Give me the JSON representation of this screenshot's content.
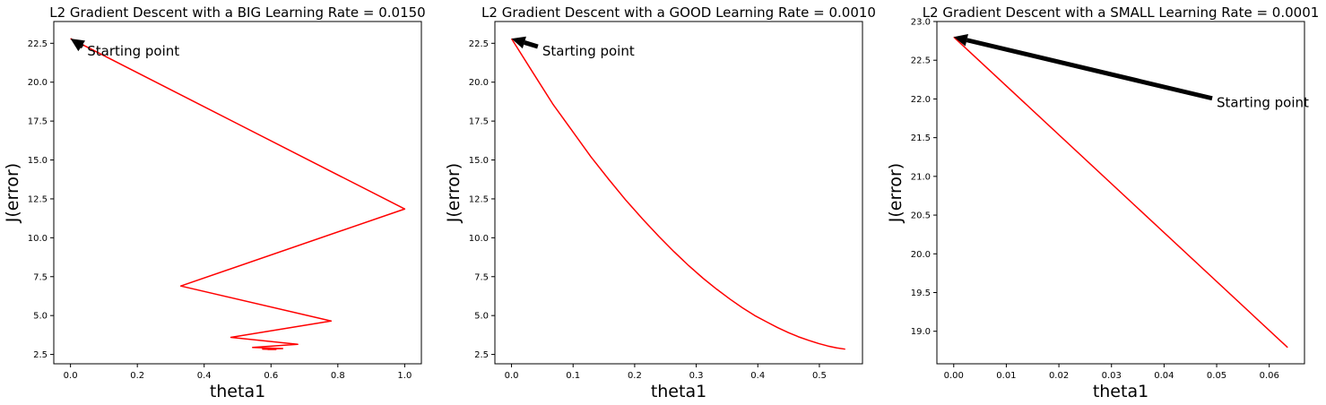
{
  "chart_data": [
    {
      "type": "line",
      "title": "L2 Gradient Descent with a BIG Learning Rate = 0.0150",
      "xlabel": "theta1",
      "ylabel": "J(error)",
      "xlim": [
        -0.05,
        1.05
      ],
      "ylim": [
        1.9,
        23.9
      ],
      "xticks": [
        0.0,
        0.2,
        0.4,
        0.6,
        0.8,
        1.0
      ],
      "xtick_labels": [
        "0.0",
        "0.2",
        "0.4",
        "0.6",
        "0.8",
        "1.0"
      ],
      "yticks": [
        2.5,
        5.0,
        7.5,
        10.0,
        12.5,
        15.0,
        17.5,
        20.0,
        22.5
      ],
      "ytick_labels": [
        "2.5",
        "5.0",
        "7.5",
        "10.0",
        "12.5",
        "15.0",
        "17.5",
        "20.0",
        "22.5"
      ],
      "grid": false,
      "series": [
        {
          "color": "#ff0000",
          "x": [
            0.0,
            1.0,
            0.33,
            0.78,
            0.48,
            0.68,
            0.545,
            0.635,
            0.575,
            0.615,
            0.59
          ],
          "y": [
            22.8,
            11.85,
            6.9,
            4.65,
            3.6,
            3.15,
            2.95,
            2.88,
            2.84,
            2.82,
            2.81
          ]
        }
      ],
      "annotation": {
        "text": "Starting point",
        "xy": [
          0.0,
          22.8
        ],
        "xytext": [
          0.05,
          22.0
        ]
      }
    },
    {
      "type": "line",
      "title": "L2 Gradient Descent with a GOOD Learning Rate = 0.0010",
      "xlabel": "theta1",
      "ylabel": "J(error)",
      "xlim": [
        -0.027,
        0.57
      ],
      "ylim": [
        1.9,
        23.9
      ],
      "xticks": [
        0.0,
        0.1,
        0.2,
        0.3,
        0.4,
        0.5
      ],
      "xtick_labels": [
        "0.0",
        "0.1",
        "0.2",
        "0.3",
        "0.4",
        "0.5"
      ],
      "yticks": [
        2.5,
        5.0,
        7.5,
        10.0,
        12.5,
        15.0,
        17.5,
        20.0,
        22.5
      ],
      "ytick_labels": [
        "2.5",
        "5.0",
        "7.5",
        "10.0",
        "12.5",
        "15.0",
        "17.5",
        "20.0",
        "22.5"
      ],
      "grid": false,
      "series": [
        {
          "color": "#ff0000",
          "x": [
            0.0,
            0.035,
            0.067,
            0.099,
            0.129,
            0.158,
            0.186,
            0.213,
            0.239,
            0.264,
            0.288,
            0.311,
            0.333,
            0.355,
            0.375,
            0.395,
            0.414,
            0.432,
            0.45,
            0.467,
            0.483,
            0.499,
            0.514,
            0.528,
            0.542
          ],
          "y": [
            22.8,
            20.6,
            18.6,
            16.85,
            15.2,
            13.75,
            12.4,
            11.2,
            10.1,
            9.1,
            8.2,
            7.4,
            6.7,
            6.05,
            5.5,
            5.0,
            4.6,
            4.23,
            3.9,
            3.62,
            3.4,
            3.2,
            3.04,
            2.92,
            2.84
          ]
        }
      ],
      "annotation": {
        "text": "Starting point",
        "xy": [
          0.0,
          22.8
        ],
        "xytext": [
          0.05,
          22.0
        ]
      }
    },
    {
      "type": "line",
      "title": "L2 Gradient Descent with a SMALL Learning Rate = 0.0001",
      "xlabel": "theta1",
      "ylabel": "J(error)",
      "xlim": [
        -0.0032,
        0.0667
      ],
      "ylim": [
        18.58,
        23.0
      ],
      "xticks": [
        0.0,
        0.01,
        0.02,
        0.03,
        0.04,
        0.05,
        0.06
      ],
      "xtick_labels": [
        "0.00",
        "0.01",
        "0.02",
        "0.03",
        "0.04",
        "0.05",
        "0.06"
      ],
      "yticks": [
        19.0,
        19.5,
        20.0,
        20.5,
        21.0,
        21.5,
        22.0,
        22.5,
        23.0
      ],
      "ytick_labels": [
        "19.0",
        "19.5",
        "20.0",
        "20.5",
        "21.0",
        "21.5",
        "22.0",
        "22.5",
        "23.0"
      ],
      "grid": false,
      "series": [
        {
          "color": "#ff0000",
          "x": [
            0.0,
            0.0635
          ],
          "y": [
            22.8,
            18.79
          ]
        }
      ],
      "annotation": {
        "text": "Starting point",
        "xy": [
          0.0,
          22.8
        ],
        "xytext": [
          0.05,
          21.95
        ]
      }
    }
  ]
}
